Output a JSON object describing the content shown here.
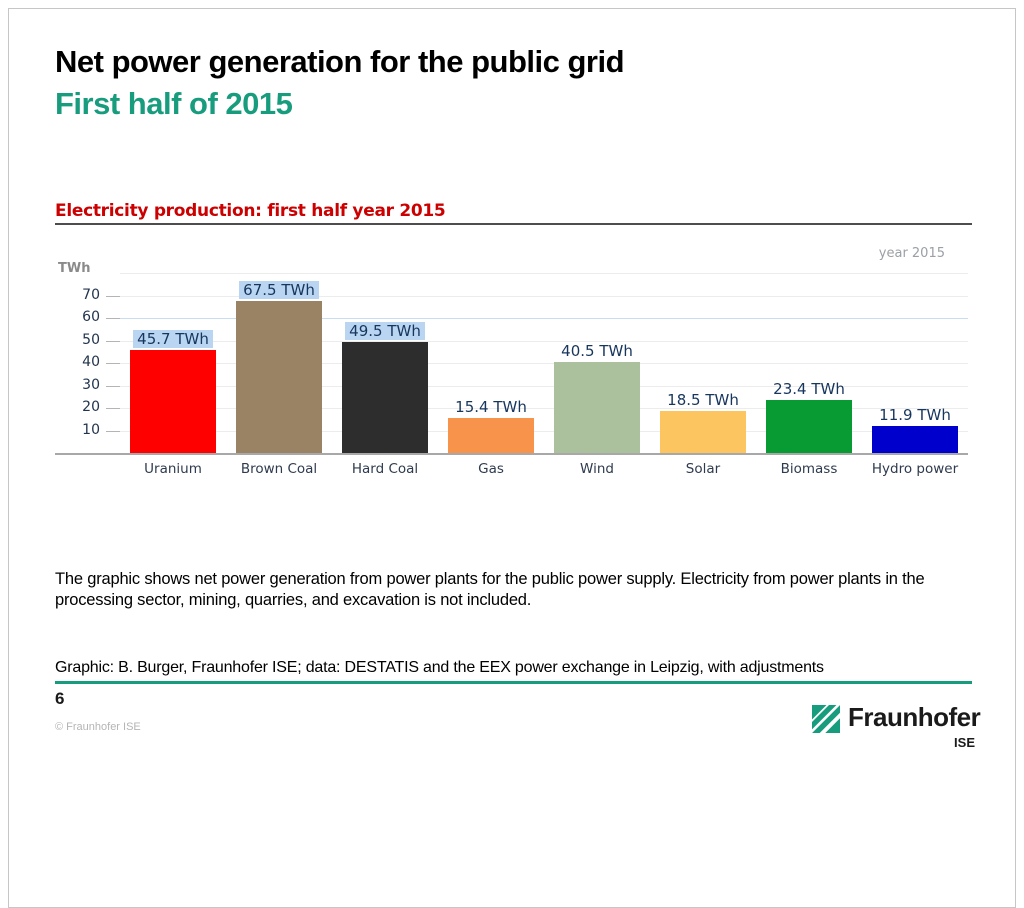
{
  "slide": {
    "title": "Net power generation for the public grid",
    "subtitle": "First half of 2015",
    "body_text": "The graphic shows net power generation from power plants for the public power supply. Electricity from power plants in the processing sector, mining, quarries, and excavation is not included.",
    "footer_credit": "Graphic: B. Burger, Fraunhofer ISE; data: DESTATIS and the EEX power exchange in Leipzig, with adjustments",
    "page_number": "6",
    "copyright": "© Fraunhofer ISE",
    "logo": {
      "brand": "Fraunhofer",
      "institute": "ISE"
    }
  },
  "colors": {
    "accent_teal": "#179c7d",
    "heading_red": "#cc0000",
    "value_highlight": "#b9d5f1",
    "gridline": "#ececec",
    "gridline_blue": "#c9ddf2"
  },
  "chart_data": {
    "type": "bar",
    "title": "Electricity production: first half year 2015",
    "ylabel": "TWh",
    "corner_label": "year 2015",
    "categories": [
      "Uranium",
      "Brown Coal",
      "Hard Coal",
      "Gas",
      "Wind",
      "Solar",
      "Biomass",
      "Hydro power"
    ],
    "values": [
      45.7,
      67.5,
      49.5,
      15.4,
      40.5,
      18.5,
      23.4,
      11.9
    ],
    "value_labels": [
      "45.7 TWh",
      "67.5 TWh",
      "49.5 TWh",
      "15.4 TWh",
      "40.5 TWh",
      "18.5 TWh",
      "23.4 TWh",
      "11.9 TWh"
    ],
    "highlighted": [
      true,
      true,
      true,
      false,
      false,
      false,
      false,
      false
    ],
    "bar_colors": [
      "#fe0000",
      "#9a8265",
      "#2d2d2d",
      "#f7934a",
      "#abc19e",
      "#fdc55f",
      "#089a33",
      "#0000cc"
    ],
    "y_ticks": [
      10,
      20,
      30,
      40,
      50,
      60,
      70
    ],
    "ylim": [
      0,
      80
    ],
    "grid": true,
    "blue_gridline_at": 60,
    "legend": "none"
  }
}
